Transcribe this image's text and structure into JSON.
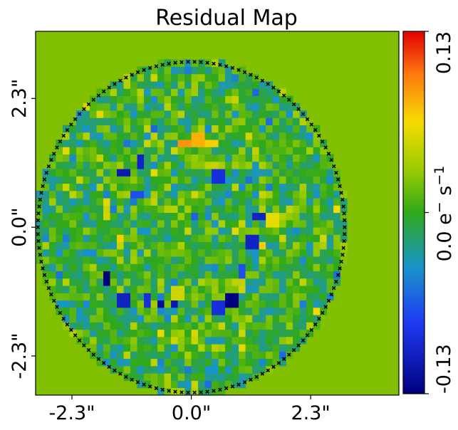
{
  "chart_data": {
    "type": "heatmap",
    "title": "Residual Map",
    "xlabel": "",
    "ylabel": "",
    "x_ticks": [
      {
        "value": -2.3,
        "label": "-2.3\""
      },
      {
        "value": 0.0,
        "label": "0.0\""
      },
      {
        "value": 2.3,
        "label": "2.3\""
      }
    ],
    "y_ticks": [
      {
        "value": 2.3,
        "label": "2.3\""
      },
      {
        "value": 0.0,
        "label": "0.0\""
      },
      {
        "value": -2.3,
        "label": "-2.3\""
      }
    ],
    "xlim": [
      -3.0,
      4.0
    ],
    "ylim": [
      -3.0,
      3.5
    ],
    "mask_radius": 3.0,
    "grid": false,
    "colormap": "jet-like",
    "colorbar": {
      "label": "0.0 e⁻ s⁻¹",
      "label_text": "0.0 e",
      "label_minus": "−",
      "label_s": " s",
      "label_inv": "−1",
      "min": -0.13,
      "max": 0.13,
      "ticks": [
        {
          "value": -0.13,
          "label": "-0.13"
        },
        {
          "value": 0.13,
          "label": "0.13"
        }
      ],
      "placement": "right"
    },
    "outside_color": "#80c000",
    "mask_marker": "x",
    "highlights": [
      {
        "x": -0.1,
        "y": 1.5,
        "value": 0.09
      },
      {
        "x": 0.15,
        "y": 1.55,
        "value": 0.08
      },
      {
        "x": 0.4,
        "y": 1.5,
        "value": 0.07
      },
      {
        "x": -1.6,
        "y": -0.9,
        "value": -0.13
      },
      {
        "x": -1.3,
        "y": -1.3,
        "value": -0.1
      },
      {
        "x": -0.85,
        "y": -1.3,
        "value": -0.09
      },
      {
        "x": -0.6,
        "y": -1.35,
        "value": -0.12
      },
      {
        "x": -0.35,
        "y": -1.35,
        "value": -0.11
      },
      {
        "x": 0.75,
        "y": -1.3,
        "value": -0.13
      },
      {
        "x": 0.55,
        "y": -1.45,
        "value": -0.09
      },
      {
        "x": -0.95,
        "y": 1.2,
        "value": -0.1
      },
      {
        "x": -1.3,
        "y": 1.0,
        "value": -0.11
      },
      {
        "x": 0.5,
        "y": 0.9,
        "value": -0.09
      },
      {
        "x": 1.3,
        "y": 0.2,
        "value": -0.1
      },
      {
        "x": 1.2,
        "y": -0.25,
        "value": -0.1
      },
      {
        "x": -1.4,
        "y": -0.2,
        "value": 0.07
      },
      {
        "x": 1.4,
        "y": -0.3,
        "value": 0.07
      },
      {
        "x": 1.55,
        "y": 0.1,
        "value": 0.06
      },
      {
        "x": -0.25,
        "y": -1.2,
        "value": 0.05
      },
      {
        "x": 1.0,
        "y": -1.1,
        "value": 0.05
      },
      {
        "x": -1.05,
        "y": 0.6,
        "value": -0.07
      },
      {
        "x": 0.95,
        "y": -0.8,
        "value": -0.07
      }
    ]
  }
}
